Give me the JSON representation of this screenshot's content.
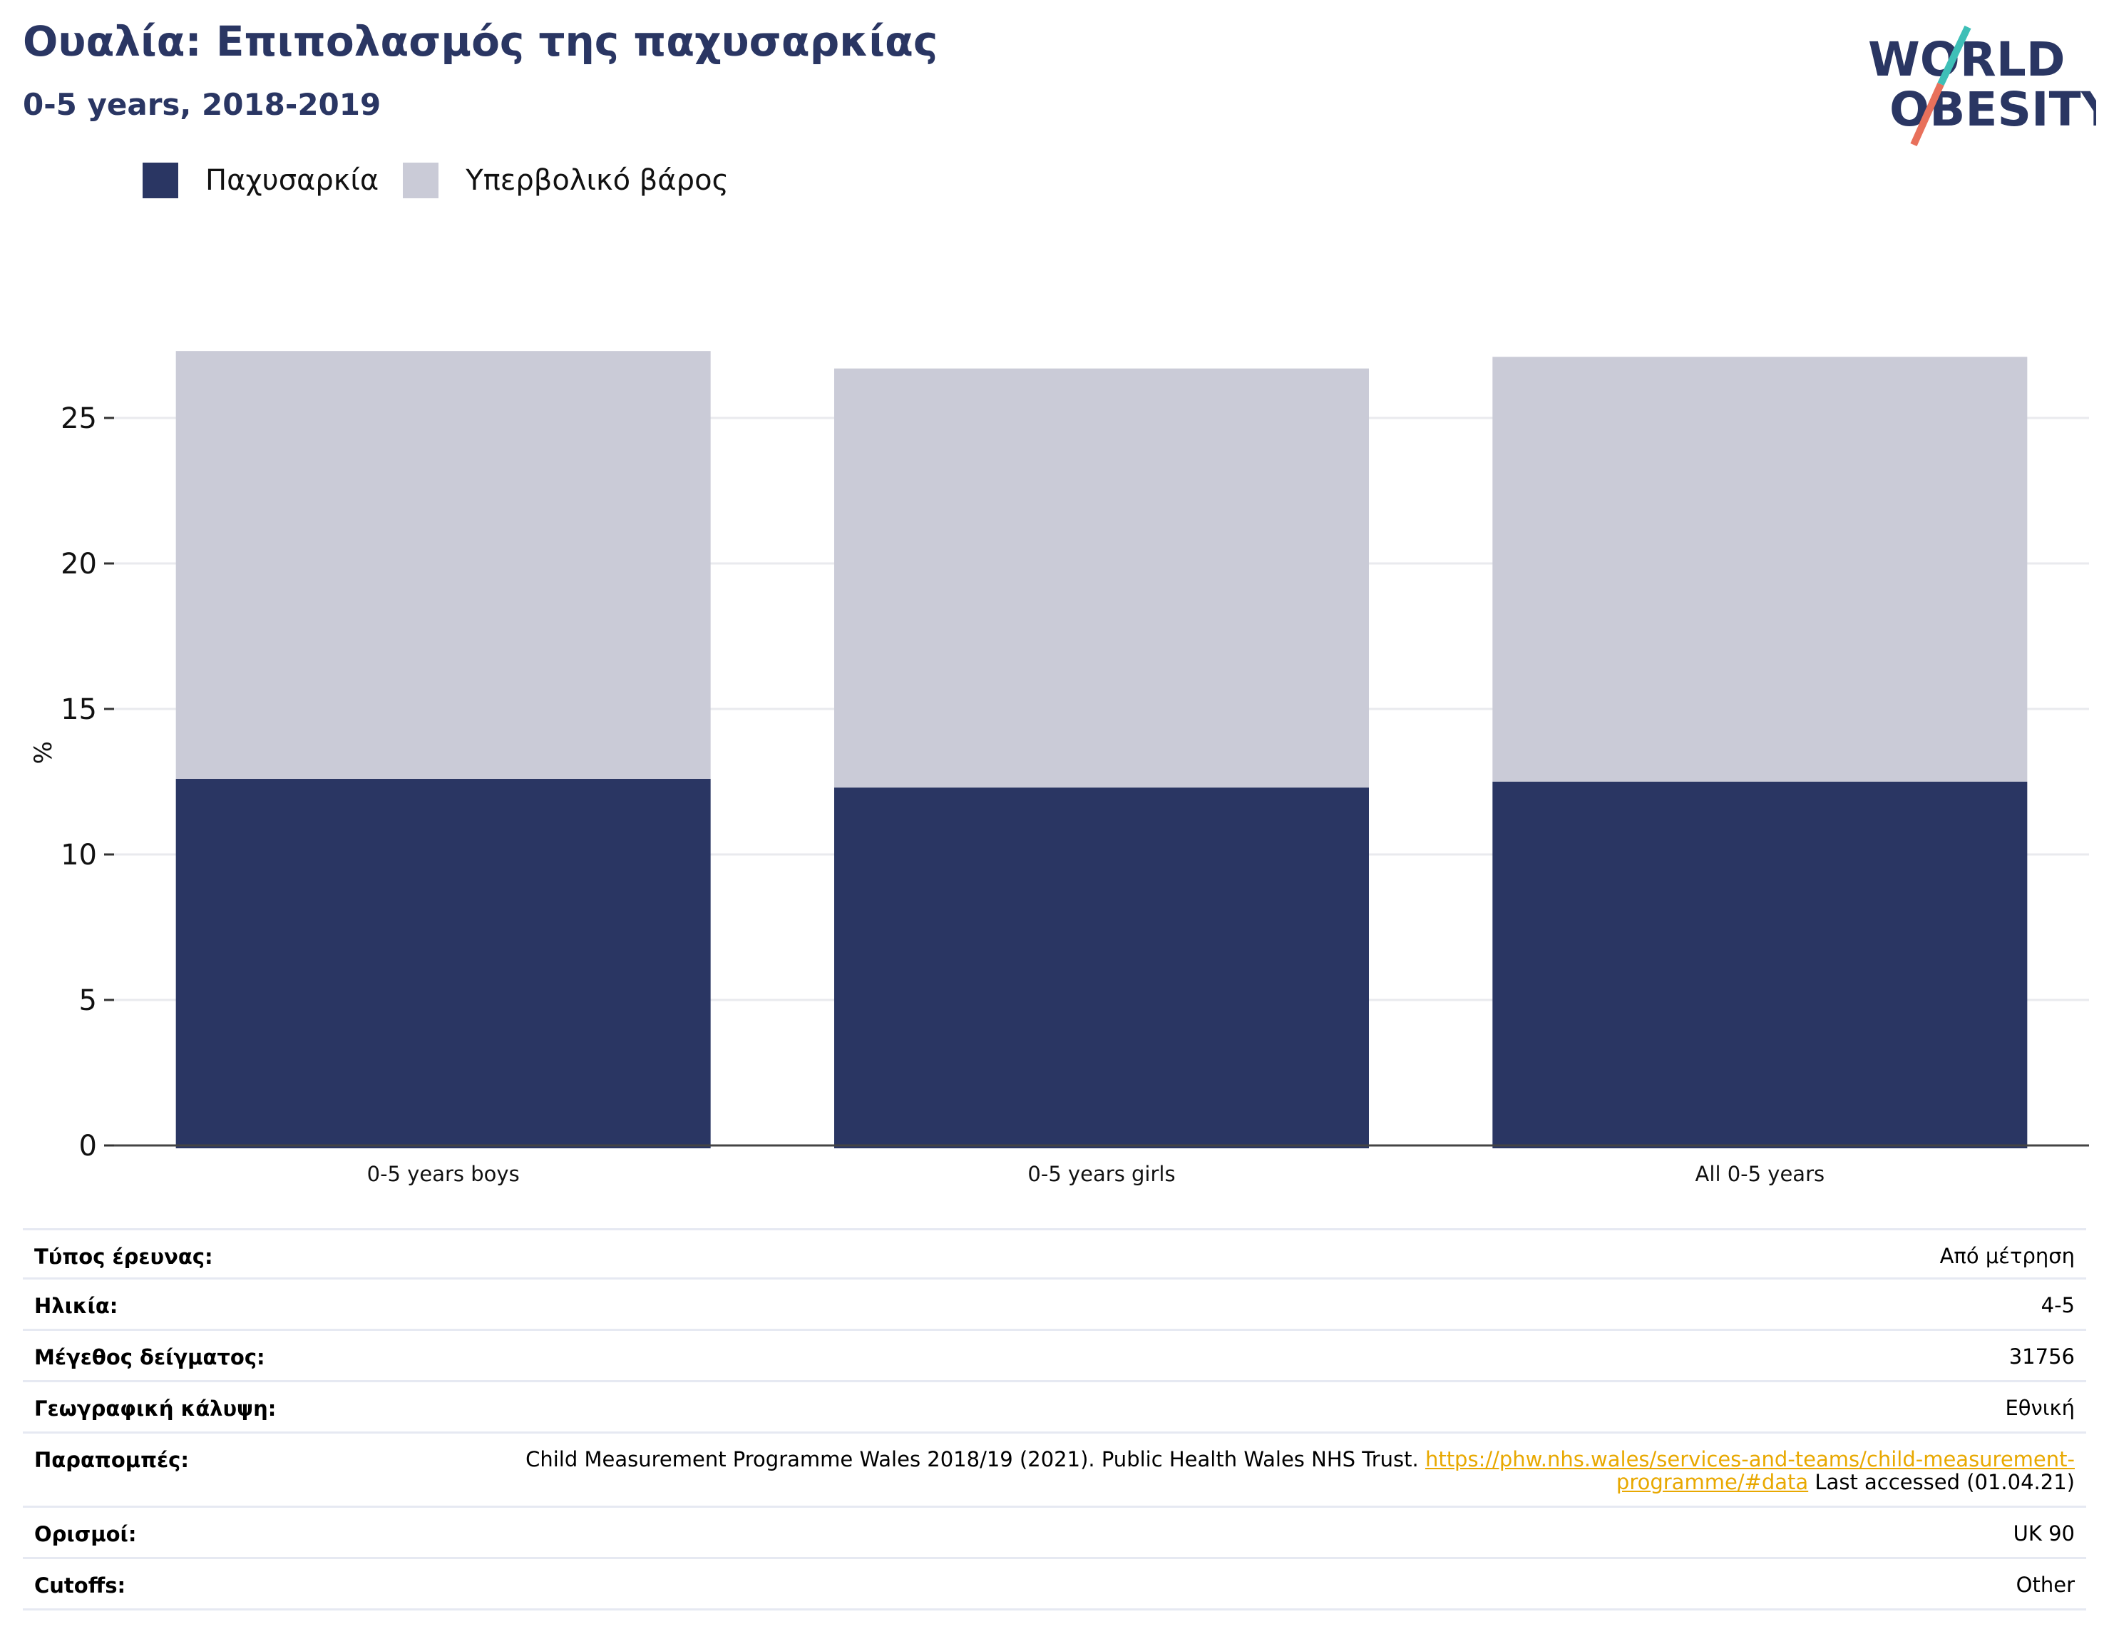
{
  "header": {
    "title": "Ουαλία: Επιπολασμός της παχυσαρκίας",
    "subtitle": "0-5 years, 2018-2019"
  },
  "logo": {
    "line1": "WORLD",
    "line2": "OBESITY"
  },
  "colors": {
    "obesity": "#2a3663",
    "overweight": "#cacbd7",
    "accent_teal": "#3ebfb7",
    "accent_coral": "#e8705b",
    "link": "#e8a800"
  },
  "chart_data": {
    "type": "bar",
    "stacked": true,
    "categories": [
      "0-5 years boys",
      "0-5 years girls",
      "All 0-5 years"
    ],
    "series": [
      {
        "name": "Παχυσαρκία",
        "values": [
          12.6,
          12.3,
          12.5
        ]
      },
      {
        "name": "Υπερβολικό βάρος",
        "values": [
          14.7,
          14.4,
          14.6
        ]
      }
    ],
    "ylabel": "%",
    "ylim": [
      0,
      28
    ],
    "yticks": [
      0,
      5,
      10,
      15,
      20,
      25
    ],
    "grid": true,
    "legend_position": "top-left"
  },
  "meta": [
    {
      "key": "Τύπος έρευνας:",
      "value": "Από μέτρηση"
    },
    {
      "key": "Ηλικία:",
      "value": "4-5"
    },
    {
      "key": "Μέγεθος δείγματος:",
      "value": "31756"
    },
    {
      "key": "Γεωγραφική κάλυψη:",
      "value": "Εθνική"
    },
    {
      "key": "Παραπομπές:",
      "value_pre": "Child Measurement Programme Wales 2018/19 (2021). Public Health Wales NHS Trust. ",
      "value_link": "https://phw.nhs.wales/services-and-teams/child-measurement-programme/#data",
      "value_post": " Last accessed (01.04.21)"
    },
    {
      "key": "Ορισμοί:",
      "value": "UK 90"
    },
    {
      "key": "Cutoffs:",
      "value": "Other"
    }
  ]
}
